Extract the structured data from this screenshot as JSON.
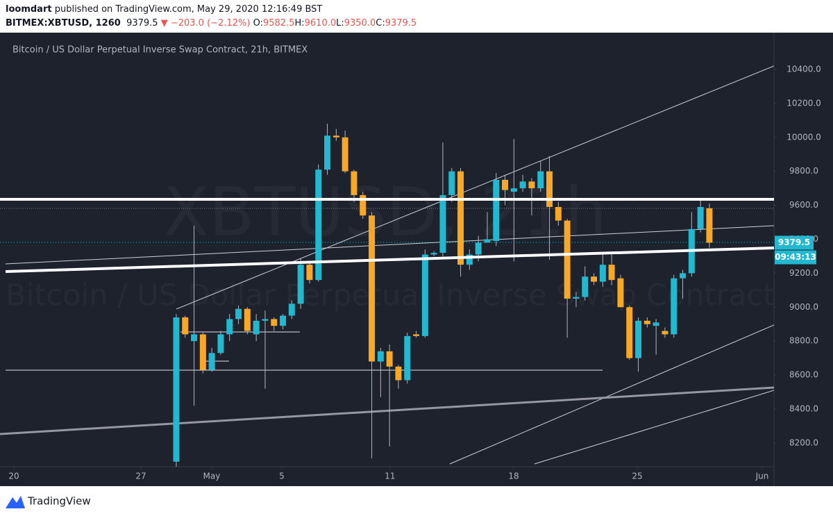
{
  "header": {
    "author": "loomdart",
    "published": "published on TradingView.com, May 29, 2020 12:16:49 BST",
    "symbol": "BITMEX:XBTUSD, 1260",
    "last": "9379.5",
    "change": "▼ −203.0 (−2.12%)",
    "ohlc": [
      {
        "label": "O:",
        "value": "9582.5"
      },
      {
        "label": "H:",
        "value": "9610.0"
      },
      {
        "label": "L:",
        "value": "9350.0"
      },
      {
        "label": "C:",
        "value": "9379.5"
      }
    ]
  },
  "chart_data": {
    "type": "candlestick",
    "title": "Bitcoin / US Dollar Perpetual Inverse Swap Contract, 21h, BITMEX",
    "watermark": [
      "XBTUSD, 21h",
      "Bitcoin / US Dollar Perpetual Inverse Swap Contract"
    ],
    "x": [
      0,
      1,
      2,
      3,
      4,
      5,
      6,
      7,
      8,
      9,
      10,
      11,
      12,
      13,
      14,
      15,
      16,
      17,
      18,
      19,
      20,
      21,
      22,
      23,
      24,
      25,
      26,
      27,
      28,
      29,
      30,
      31,
      32,
      33,
      34,
      35,
      36,
      37,
      38,
      39,
      40,
      41,
      42,
      43,
      44,
      45,
      46,
      47,
      48,
      49,
      50,
      51,
      52,
      53,
      54,
      55,
      56,
      57,
      58,
      59,
      60
    ],
    "open": [
      8090,
      8940,
      8800,
      8840,
      8630,
      8730,
      8840,
      8930,
      8990,
      8840,
      8920,
      8930,
      8890,
      8950,
      9020,
      9250,
      9160,
      9810,
      10010,
      10000,
      9800,
      9660,
      9540,
      8680,
      8740,
      8650,
      8570,
      8840,
      8830,
      9310,
      9320,
      9660,
      9800,
      9250,
      9310,
      9380,
      9390,
      9750,
      9680,
      9700,
      9740,
      9700,
      9800,
      9590,
      9510,
      9050,
      9060,
      9180,
      9150,
      9250,
      9170,
      9000,
      8700,
      8920,
      8890,
      8860,
      8840,
      9170,
      9200,
      9460,
      9582.5
    ],
    "high": [
      8960,
      8950,
      9480,
      8850,
      8760,
      8860,
      8960,
      9010,
      9000,
      8960,
      8980,
      8940,
      8960,
      9040,
      9290,
      9270,
      9840,
      10080,
      10050,
      10040,
      9810,
      9680,
      9560,
      8760,
      8780,
      8660,
      8850,
      8860,
      9340,
      9330,
      9970,
      9820,
      9820,
      9340,
      9420,
      9560,
      9790,
      9780,
      9990,
      9780,
      9760,
      9860,
      9890,
      9620,
      9520,
      9090,
      9240,
      9200,
      9310,
      9310,
      9190,
      9010,
      8940,
      8940,
      8930,
      8880,
      9190,
      9220,
      9560,
      9630,
      9610
    ],
    "low": [
      8060,
      8820,
      8420,
      8610,
      8620,
      8720,
      8800,
      8900,
      8840,
      8800,
      8520,
      8860,
      8870,
      8930,
      8990,
      9140,
      9150,
      9780,
      9980,
      9790,
      9620,
      9520,
      8110,
      8470,
      8180,
      8520,
      8550,
      8820,
      8820,
      9300,
      9300,
      9620,
      9180,
      9220,
      9270,
      9380,
      9360,
      9600,
      9270,
      9680,
      9540,
      9680,
      9280,
      9480,
      8820,
      9000,
      9040,
      9130,
      9120,
      9130,
      9000,
      8690,
      8620,
      8880,
      8720,
      8820,
      8820,
      9050,
      9180,
      9440,
      9350
    ],
    "close": [
      8940,
      8840,
      8840,
      8630,
      8730,
      8840,
      8930,
      8990,
      8860,
      8920,
      8930,
      8890,
      8950,
      9020,
      9250,
      9160,
      9810,
      10010,
      10000,
      9800,
      9660,
      9540,
      8680,
      8740,
      8650,
      8570,
      8830,
      8830,
      9310,
      9320,
      9660,
      9800,
      9250,
      9310,
      9380,
      9400,
      9750,
      9690,
      9700,
      9740,
      9700,
      9800,
      9590,
      9510,
      9050,
      9060,
      9180,
      9150,
      9250,
      9160,
      9000,
      8700,
      8920,
      8900,
      8910,
      8840,
      9170,
      9200,
      9460,
      9590,
      9379.5
    ],
    "up_color": "#22b8cf",
    "down_color": "#f9a825",
    "xlim": [
      -19.84,
      67.27
    ],
    "ylim": [
      8060.5,
      10612.7
    ],
    "xticks": [
      {
        "value": -18.28,
        "label": "20"
      },
      {
        "value": -3.98,
        "label": "27"
      },
      {
        "value": 3.98,
        "label": "May"
      },
      {
        "value": 11.87,
        "label": "5"
      },
      {
        "value": 24.06,
        "label": "11"
      },
      {
        "value": 37.97,
        "label": "18"
      },
      {
        "value": 51.88,
        "label": "25"
      },
      {
        "value": 65.94,
        "label": "Jun"
      }
    ],
    "yticks": [
      {
        "value": 8200,
        "label": "8200.0"
      },
      {
        "value": 8400,
        "label": "8400.0"
      },
      {
        "value": 8600,
        "label": "8600.0"
      },
      {
        "value": 8800,
        "label": "8800.0"
      },
      {
        "value": 9000,
        "label": "9000.0"
      },
      {
        "value": 9200,
        "label": "9200.0"
      },
      {
        "value": 9400,
        "label": "9400.0"
      },
      {
        "value": 9600,
        "label": "9600.0"
      },
      {
        "value": 9800,
        "label": "9800.0"
      },
      {
        "value": 10000,
        "label": "10000.0"
      },
      {
        "value": 10200,
        "label": "10200.0"
      },
      {
        "value": 10400,
        "label": "10400.0"
      }
    ],
    "countdown": "09:43:13"
  },
  "footer": {
    "brand": "TradingView"
  }
}
